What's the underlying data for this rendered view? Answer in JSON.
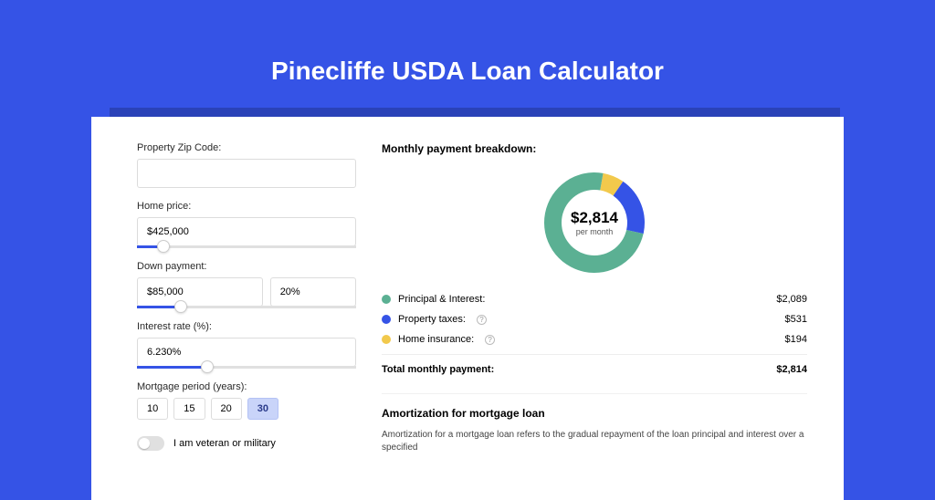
{
  "page": {
    "title": "Pinecliffe USDA Loan Calculator",
    "background_color": "#3553e6",
    "shadow_color": "#2a42b8",
    "card_color": "#ffffff"
  },
  "form": {
    "zip": {
      "label": "Property Zip Code:",
      "value": ""
    },
    "home_price": {
      "label": "Home price:",
      "value": "$425,000",
      "slider_percent": 12
    },
    "down_payment": {
      "label": "Down payment:",
      "amount": "$85,000",
      "percent": "20%",
      "slider_percent": 20
    },
    "interest": {
      "label": "Interest rate (%):",
      "value": "6.230%",
      "slider_percent": 32
    },
    "period": {
      "label": "Mortgage period (years):",
      "options": [
        "10",
        "15",
        "20",
        "30"
      ],
      "selected": "30"
    },
    "veteran": {
      "label": "I am veteran or military",
      "checked": false
    }
  },
  "breakdown": {
    "title": "Monthly payment breakdown:",
    "donut": {
      "value": "$2,814",
      "sub": "per month",
      "total": 2814,
      "slices": [
        {
          "label": "Principal & Interest:",
          "value": 2089,
          "display": "$2,089",
          "color": "#5bb093"
        },
        {
          "label": "Property taxes:",
          "value": 531,
          "display": "$531",
          "color": "#3553e6",
          "info": true
        },
        {
          "label": "Home insurance:",
          "value": 194,
          "display": "$194",
          "color": "#f2c94c",
          "info": true
        }
      ]
    },
    "total": {
      "label": "Total monthly payment:",
      "value": "$2,814"
    }
  },
  "amortization": {
    "title": "Amortization for mortgage loan",
    "text": "Amortization for a mortgage loan refers to the gradual repayment of the loan principal and interest over a specified"
  }
}
